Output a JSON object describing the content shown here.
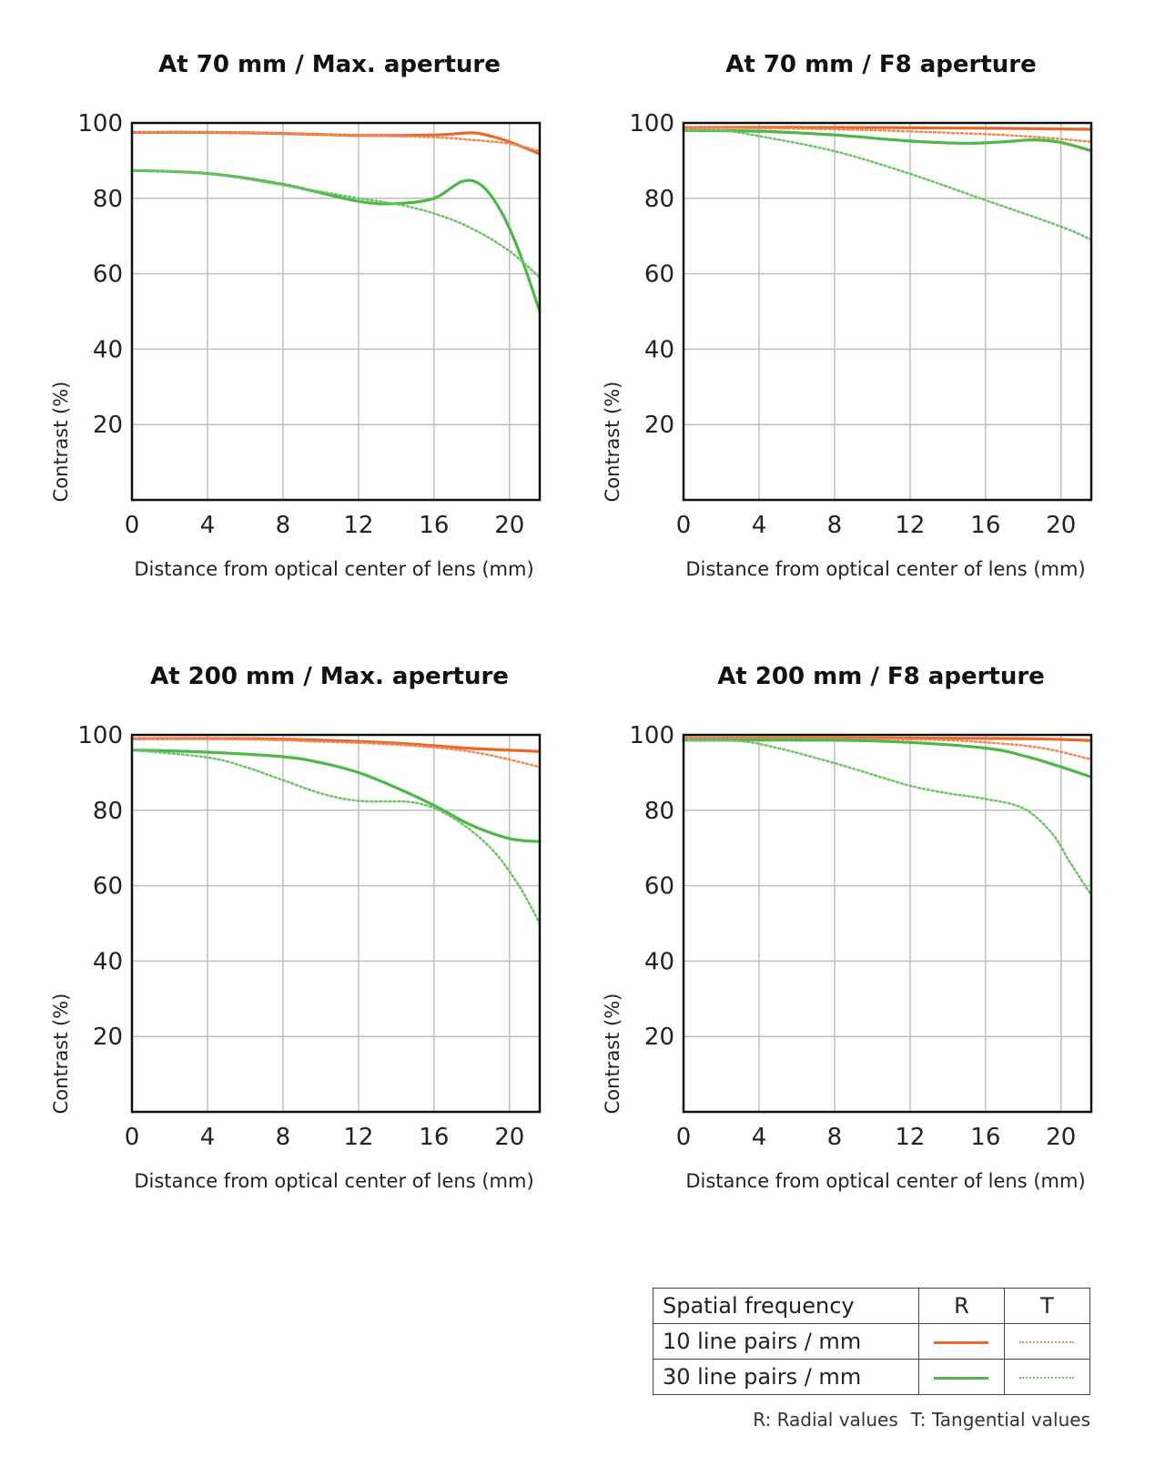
{
  "colors": {
    "radial_10": "#e8682b",
    "tangential_10": "#ef8a55",
    "radial_30": "#4db848",
    "tangential_30": "#6cc466",
    "grid": "#bfbfbf",
    "frame": "#111111"
  },
  "chart_data": [
    {
      "type": "line",
      "title": "At 70 mm / Max. aperture",
      "xlabel": "Distance from optical center of lens (mm)",
      "ylabel": "Contrast (%)",
      "xlim": [
        0,
        21.6
      ],
      "ylim": [
        0,
        100
      ],
      "xticks": [
        0,
        4,
        8,
        12,
        16,
        20
      ],
      "yticks": [
        20,
        40,
        60,
        80,
        100
      ],
      "grid": true,
      "series": [
        {
          "name": "10 line pairs / mm R",
          "style": "solid",
          "color_key": "radial_10",
          "points": [
            [
              0,
              97.5
            ],
            [
              4,
              97.5
            ],
            [
              8,
              97.2
            ],
            [
              12,
              96.7
            ],
            [
              16,
              96.8
            ],
            [
              18,
              97.4
            ],
            [
              19,
              96.5
            ],
            [
              20,
              95
            ],
            [
              21.6,
              91.8
            ]
          ]
        },
        {
          "name": "10 line pairs / mm T",
          "style": "dotted",
          "color_key": "tangential_10",
          "points": [
            [
              0,
              97.5
            ],
            [
              4,
              97.5
            ],
            [
              8,
              97.2
            ],
            [
              12,
              96.7
            ],
            [
              16,
              96.2
            ],
            [
              18,
              95.5
            ],
            [
              20,
              94.5
            ],
            [
              21.6,
              92.5
            ]
          ]
        },
        {
          "name": "30 line pairs / mm R",
          "style": "solid",
          "color_key": "radial_30",
          "points": [
            [
              0,
              87.4
            ],
            [
              4,
              86.6
            ],
            [
              8,
              83.7
            ],
            [
              12,
              79.2
            ],
            [
              14,
              78.6
            ],
            [
              16,
              80
            ],
            [
              17.5,
              84.5
            ],
            [
              18.5,
              83.5
            ],
            [
              19.5,
              77
            ],
            [
              20.5,
              66
            ],
            [
              21.6,
              50
            ]
          ]
        },
        {
          "name": "30 line pairs / mm T",
          "style": "dotted",
          "color_key": "tangential_30",
          "points": [
            [
              0,
              87.4
            ],
            [
              4,
              86.6
            ],
            [
              8,
              83.5
            ],
            [
              12,
              80
            ],
            [
              14,
              78.5
            ],
            [
              16,
              76
            ],
            [
              18,
              72
            ],
            [
              20,
              66
            ],
            [
              21.6,
              59
            ]
          ]
        }
      ]
    },
    {
      "type": "line",
      "title": "At 70 mm / F8 aperture",
      "xlabel": "Distance from optical center of lens (mm)",
      "ylabel": "Contrast (%)",
      "xlim": [
        0,
        21.6
      ],
      "ylim": [
        0,
        100
      ],
      "xticks": [
        0,
        4,
        8,
        12,
        16,
        20
      ],
      "yticks": [
        20,
        40,
        60,
        80,
        100
      ],
      "grid": true,
      "series": [
        {
          "name": "10 line pairs / mm R",
          "style": "solid",
          "color_key": "radial_10",
          "points": [
            [
              0,
              98.8
            ],
            [
              8,
              98.8
            ],
            [
              16,
              98.6
            ],
            [
              21.6,
              98.3
            ]
          ]
        },
        {
          "name": "10 line pairs / mm T",
          "style": "dotted",
          "color_key": "tangential_10",
          "points": [
            [
              0,
              98.8
            ],
            [
              8,
              98.3
            ],
            [
              14,
              97.4
            ],
            [
              18,
              96.5
            ],
            [
              21.6,
              95
            ]
          ]
        },
        {
          "name": "30 line pairs / mm R",
          "style": "solid",
          "color_key": "radial_30",
          "points": [
            [
              0,
              98
            ],
            [
              4,
              97.8
            ],
            [
              8,
              96.8
            ],
            [
              12,
              95.2
            ],
            [
              15,
              94.6
            ],
            [
              17,
              95
            ],
            [
              18.5,
              95.5
            ],
            [
              20,
              94.8
            ],
            [
              21.6,
              92.6
            ]
          ]
        },
        {
          "name": "30 line pairs / mm T",
          "style": "dotted",
          "color_key": "tangential_30",
          "points": [
            [
              0,
              98
            ],
            [
              2,
              98
            ],
            [
              4,
              96.5
            ],
            [
              8,
              92.5
            ],
            [
              12,
              86.5
            ],
            [
              16,
              79.5
            ],
            [
              20,
              72.5
            ],
            [
              21.6,
              69
            ]
          ]
        }
      ]
    },
    {
      "type": "line",
      "title": "At 200 mm / Max. aperture",
      "xlabel": "Distance from optical center of lens (mm)",
      "ylabel": "Contrast (%)",
      "xlim": [
        0,
        21.6
      ],
      "ylim": [
        0,
        100
      ],
      "xticks": [
        0,
        4,
        8,
        12,
        16,
        20
      ],
      "yticks": [
        20,
        40,
        60,
        80,
        100
      ],
      "grid": true,
      "series": [
        {
          "name": "10 line pairs / mm R",
          "style": "solid",
          "color_key": "radial_10",
          "points": [
            [
              0,
              99
            ],
            [
              6,
              99
            ],
            [
              10,
              98.6
            ],
            [
              14,
              97.8
            ],
            [
              18,
              96.4
            ],
            [
              21.6,
              95.6
            ]
          ]
        },
        {
          "name": "10 line pairs / mm T",
          "style": "dotted",
          "color_key": "tangential_10",
          "points": [
            [
              0,
              99
            ],
            [
              6,
              98.8
            ],
            [
              10,
              98.2
            ],
            [
              14,
              97.4
            ],
            [
              18,
              95.5
            ],
            [
              21.6,
              91.5
            ]
          ]
        },
        {
          "name": "30 line pairs / mm R",
          "style": "solid",
          "color_key": "radial_30",
          "points": [
            [
              0,
              96
            ],
            [
              4,
              95.4
            ],
            [
              8,
              94.2
            ],
            [
              10,
              92.6
            ],
            [
              12,
              90
            ],
            [
              14,
              86
            ],
            [
              16,
              81.3
            ],
            [
              18,
              76
            ],
            [
              20,
              72.5
            ],
            [
              21.6,
              71.7
            ]
          ]
        },
        {
          "name": "30 line pairs / mm T",
          "style": "dotted",
          "color_key": "tangential_30",
          "points": [
            [
              0,
              96
            ],
            [
              4,
              94
            ],
            [
              6,
              91.5
            ],
            [
              8,
              88
            ],
            [
              10,
              84.5
            ],
            [
              12,
              82.5
            ],
            [
              15,
              82
            ],
            [
              17,
              78
            ],
            [
              19,
              70
            ],
            [
              20.5,
              60
            ],
            [
              21.6,
              50
            ]
          ]
        }
      ]
    },
    {
      "type": "line",
      "title": "At 200 mm / F8 aperture",
      "xlabel": "Distance from optical center of lens (mm)",
      "ylabel": "Contrast (%)",
      "xlim": [
        0,
        21.6
      ],
      "ylim": [
        0,
        100
      ],
      "xticks": [
        0,
        4,
        8,
        12,
        16,
        20
      ],
      "yticks": [
        20,
        40,
        60,
        80,
        100
      ],
      "grid": true,
      "series": [
        {
          "name": "10 line pairs / mm R",
          "style": "solid",
          "color_key": "radial_10",
          "points": [
            [
              0,
              99.2
            ],
            [
              10,
              99.2
            ],
            [
              18,
              99
            ],
            [
              21.6,
              98.5
            ]
          ]
        },
        {
          "name": "10 line pairs / mm T",
          "style": "dotted",
          "color_key": "tangential_10",
          "points": [
            [
              0,
              99.2
            ],
            [
              12,
              98.8
            ],
            [
              16,
              98
            ],
            [
              19,
              96.5
            ],
            [
              21.6,
              93.5
            ]
          ]
        },
        {
          "name": "30 line pairs / mm R",
          "style": "solid",
          "color_key": "radial_30",
          "points": [
            [
              0,
              98.6
            ],
            [
              8,
              98.6
            ],
            [
              12,
              98
            ],
            [
              16,
              96.5
            ],
            [
              18,
              94.5
            ],
            [
              20,
              91.5
            ],
            [
              21.6,
              88.8
            ]
          ]
        },
        {
          "name": "30 line pairs / mm T",
          "style": "dotted",
          "color_key": "tangential_30",
          "points": [
            [
              0,
              98.6
            ],
            [
              3,
              98.3
            ],
            [
              5,
              96.5
            ],
            [
              8,
              92.5
            ],
            [
              10,
              89.5
            ],
            [
              12,
              86.5
            ],
            [
              14,
              84.5
            ],
            [
              16,
              83
            ],
            [
              18,
              80.5
            ],
            [
              19.5,
              74
            ],
            [
              20.5,
              66
            ],
            [
              21.6,
              57.5
            ]
          ]
        }
      ]
    }
  ],
  "legend": {
    "header": {
      "label": "Spatial frequency",
      "r": "R",
      "t": "T"
    },
    "rows": [
      {
        "label": "10 line pairs / mm",
        "r_color_key": "radial_10",
        "t_color_key": "tangential_10"
      },
      {
        "label": "30 line pairs / mm",
        "r_color_key": "radial_30",
        "t_color_key": "tangential_30"
      }
    ],
    "note_r": "R: Radial values",
    "note_t": "T: Tangential values"
  }
}
